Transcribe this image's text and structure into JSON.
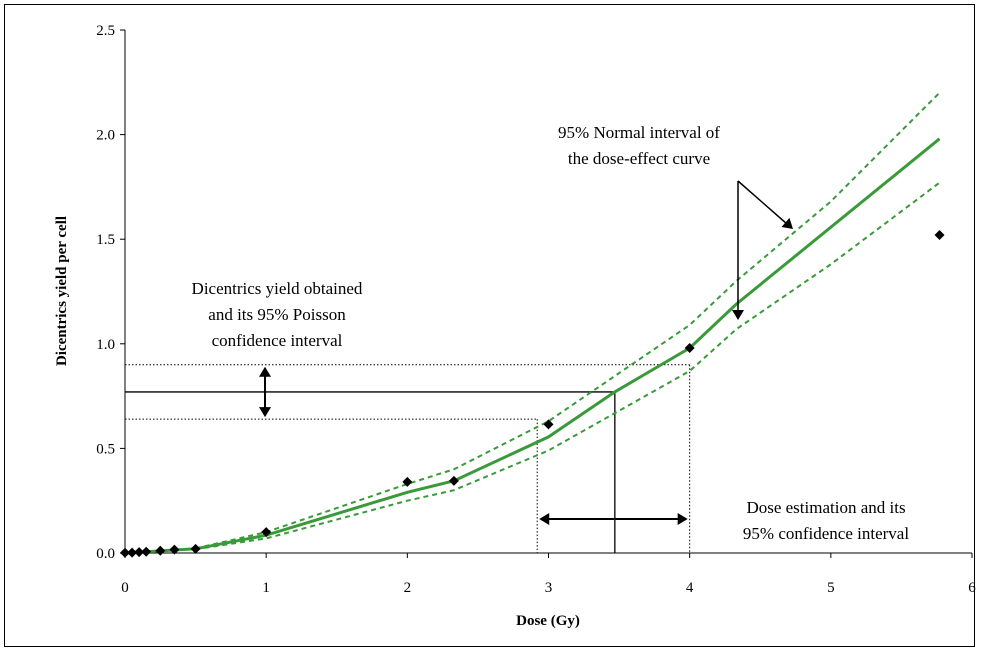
{
  "chart_data": {
    "type": "scatter",
    "xlabel": "Dose (Gy)",
    "ylabel": "Dicentrics yield per cell",
    "xlim": [
      0,
      6
    ],
    "ylim": [
      0,
      2.5
    ],
    "x_ticks": [
      "0",
      "1",
      "2",
      "3",
      "4",
      "5",
      "6"
    ],
    "y_ticks": [
      "0.0",
      "0.5",
      "1.0",
      "1.5",
      "2.0",
      "2.5"
    ],
    "grid": false,
    "colors": {
      "curve": "#3a9a3a",
      "points": "#000000",
      "guides": "#000000"
    },
    "observed_points": {
      "x": [
        0,
        0.05,
        0.1,
        0.15,
        0.25,
        0.35,
        0.5,
        1.0,
        2.0,
        2.33,
        3.0,
        4.0,
        5.77
      ],
      "y": [
        0.001,
        0.002,
        0.004,
        0.006,
        0.011,
        0.016,
        0.02,
        0.1,
        0.34,
        0.345,
        0.615,
        0.98,
        1.52
      ]
    },
    "fitted_curve": {
      "x": [
        0,
        0.5,
        1.0,
        2.0,
        2.33,
        3.0,
        3.47,
        4.0,
        4.33,
        5.77
      ],
      "y": [
        0,
        0.02,
        0.085,
        0.29,
        0.345,
        0.555,
        0.77,
        0.98,
        1.19,
        1.98
      ]
    },
    "upper_interval": {
      "x": [
        0.5,
        1.0,
        2.0,
        2.33,
        3.0,
        4.0,
        4.33,
        5.0,
        5.77
      ],
      "y": [
        0.022,
        0.1,
        0.33,
        0.4,
        0.63,
        1.09,
        1.3,
        1.68,
        2.2
      ]
    },
    "lower_interval": {
      "x": [
        0.5,
        1.0,
        2.0,
        2.33,
        3.0,
        4.0,
        4.33,
        5.0,
        5.77
      ],
      "y": [
        0.018,
        0.07,
        0.25,
        0.3,
        0.49,
        0.87,
        1.07,
        1.38,
        1.77
      ]
    },
    "dose_estimate": {
      "yield": 0.77,
      "yield_low": 0.64,
      "yield_high": 0.9,
      "dose": 3.47,
      "dose_low": 2.92,
      "dose_high": 4.0
    },
    "annotations": {
      "poisson": [
        "Dicentrics yield obtained",
        "and its 95% Poisson",
        "confidence interval"
      ],
      "normal": [
        "95% Normal interval of",
        "the dose-effect curve"
      ],
      "dose": [
        "Dose estimation and its",
        "95% confidence interval"
      ]
    }
  }
}
